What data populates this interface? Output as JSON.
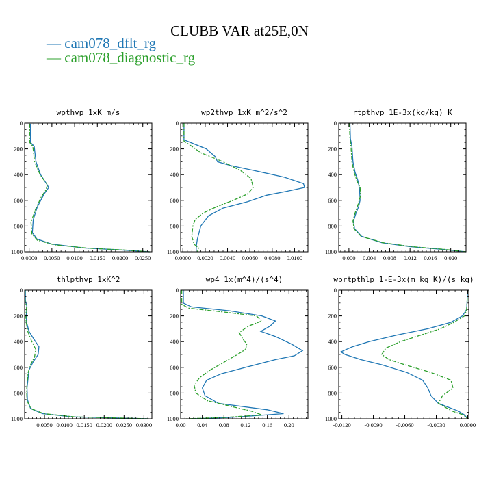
{
  "chart_data": {
    "title": "CLUBB VAR at25E,0N",
    "legend": [
      {
        "label": "cam078_dflt_rg",
        "color": "#1f77b4",
        "dash": "solid"
      },
      {
        "label": "cam078_diagnostic_rg",
        "color": "#2ca02c",
        "dash": "dashdot"
      }
    ],
    "panels": [
      {
        "type": "line",
        "title": "wpthvp   1xK m/s",
        "xlim": [
          -0.001,
          0.027
        ],
        "ylim": [
          1000,
          0
        ],
        "xticks": [
          0.0,
          0.005,
          0.01,
          0.015,
          0.02,
          0.025
        ],
        "xtick_labels": [
          "0.0000",
          "0.0050",
          "0.0100",
          "0.0150",
          "0.0200",
          "0.0250"
        ],
        "yticks": [
          0,
          200,
          400,
          600,
          800,
          1000
        ],
        "ytick_labels": [
          "0",
          "200",
          "400",
          "600",
          "800",
          "1000"
        ],
        "series": [
          {
            "y": [
              5,
              150,
              180,
              300,
              400,
              470,
              500,
              550,
              650,
              750,
              850,
              900,
              940,
              970,
              985,
              1000
            ],
            "x": [
              0.0003,
              0.0003,
              0.0011,
              0.0015,
              0.0025,
              0.0038,
              0.0043,
              0.0033,
              0.0018,
              0.0009,
              0.0007,
              0.0017,
              0.005,
              0.012,
              0.02,
              0.0265
            ]
          },
          {
            "y": [
              5,
              150,
              180,
              300,
              400,
              480,
              520,
              570,
              670,
              770,
              860,
              910,
              945,
              972,
              986,
              1000
            ],
            "x": [
              0.0001,
              0.0001,
              0.0008,
              0.0012,
              0.0024,
              0.004,
              0.0037,
              0.0027,
              0.0014,
              0.0004,
              0.0006,
              0.0018,
              0.0055,
              0.013,
              0.021,
              0.0265
            ]
          }
        ]
      },
      {
        "type": "line",
        "title": "wp2thvp   1xK m^2/s^2",
        "xlim": [
          -0.0002,
          0.0112
        ],
        "ylim": [
          1000,
          0
        ],
        "xticks": [
          0.0,
          0.002,
          0.004,
          0.006,
          0.008,
          0.01
        ],
        "xtick_labels": [
          "0.0000",
          "0.0020",
          "0.0040",
          "0.0060",
          "0.0080",
          "0.0100"
        ],
        "yticks": [
          0,
          200,
          400,
          600,
          800,
          1000
        ],
        "ytick_labels": [
          "0",
          "200",
          "400",
          "600",
          "800",
          "1000"
        ],
        "series": [
          {
            "y": [
              0,
              130,
              200,
              260,
              300,
              330,
              370,
              420,
              470,
              500,
              530,
              560,
              610,
              660,
              720,
              800,
              900,
              960,
              1000
            ],
            "x": [
              0.0001,
              0.0001,
              0.0021,
              0.0029,
              0.0031,
              0.0043,
              0.0065,
              0.0091,
              0.0108,
              0.0109,
              0.0093,
              0.0075,
              0.0058,
              0.0036,
              0.0023,
              0.0016,
              0.0013,
              0.0012,
              0.0012
            ]
          },
          {
            "y": [
              0,
              140,
              180,
              230,
              300,
              370,
              430,
              500,
              550,
              600,
              650,
              700,
              750,
              800,
              880,
              940,
              970,
              1000
            ],
            "x": [
              0.0001,
              0.0001,
              0.0008,
              0.0016,
              0.0036,
              0.0052,
              0.0061,
              0.0063,
              0.0058,
              0.0045,
              0.003,
              0.0018,
              0.0011,
              0.0009,
              0.0008,
              0.001,
              0.0014,
              0.0013
            ]
          }
        ]
      },
      {
        "type": "line",
        "title": "rtpthvp   1E-3x(kg/kg) K",
        "xlim": [
          -0.002,
          0.023
        ],
        "ylim": [
          1000,
          0
        ],
        "xticks": [
          0.0,
          0.004,
          0.008,
          0.012,
          0.016,
          0.02
        ],
        "xtick_labels": [
          "0.000",
          "0.004",
          "0.008",
          "0.012",
          "0.016",
          "0.020"
        ],
        "yticks": [
          0,
          200,
          400,
          600,
          800,
          1000
        ],
        "ytick_labels": [
          "0",
          "200",
          "400",
          "600",
          "800",
          "1000"
        ],
        "series": [
          {
            "y": [
              0,
              120,
              180,
              300,
              380,
              450,
              520,
              600,
              650,
              700,
              760,
              820,
              880,
              930,
              960,
              980,
              1000
            ],
            "x": [
              0.0002,
              0.0003,
              0.0006,
              0.0008,
              0.0012,
              0.0018,
              0.0021,
              0.0022,
              0.0019,
              0.0014,
              0.0009,
              0.0011,
              0.0025,
              0.0065,
              0.012,
              0.018,
              0.023
            ]
          },
          {
            "y": [
              0,
              120,
              180,
              300,
              380,
              450,
              500,
              560,
              620,
              700,
              760,
              820,
              880,
              930,
              960,
              980,
              1000
            ],
            "x": [
              0.0001,
              0.0002,
              0.0004,
              0.0006,
              0.001,
              0.0016,
              0.0022,
              0.0023,
              0.0019,
              0.0012,
              0.0008,
              0.001,
              0.0024,
              0.0068,
              0.0125,
              0.0185,
              0.023
            ]
          }
        ]
      },
      {
        "type": "line",
        "title": "thlpthvp   1xK^2",
        "xlim": [
          0.0,
          0.032
        ],
        "ylim": [
          1000,
          0
        ],
        "xticks": [
          0.005,
          0.01,
          0.015,
          0.02,
          0.025,
          0.03
        ],
        "xtick_labels": [
          "0.0050",
          "0.0100",
          "0.0150",
          "0.0200",
          "0.0250",
          "0.0300"
        ],
        "yticks": [
          0,
          200,
          400,
          600,
          800,
          1000
        ],
        "ytick_labels": [
          "0",
          "200",
          "400",
          "600",
          "800",
          "1000"
        ],
        "series": [
          {
            "y": [
              0,
              80,
              130,
              200,
              250,
              320,
              380,
              440,
              500,
              560,
              620,
              680,
              760,
              850,
              920,
              960,
              985,
              1000
            ],
            "x": [
              0.0002,
              0.0002,
              0.0006,
              0.0004,
              0.0005,
              0.0011,
              0.0023,
              0.0036,
              0.0034,
              0.0021,
              0.0011,
              0.0009,
              0.0006,
              0.0007,
              0.0015,
              0.0045,
              0.012,
              0.0312
            ]
          },
          {
            "y": [
              0,
              80,
              130,
              200,
              250,
              320,
              400,
              460,
              520,
              580,
              640,
              700,
              780,
              860,
              920,
              960,
              985,
              1000
            ],
            "x": [
              0.0001,
              0.0001,
              0.0005,
              0.0003,
              0.0004,
              0.0008,
              0.0018,
              0.0028,
              0.0025,
              0.0015,
              0.0009,
              0.0007,
              0.0005,
              0.0006,
              0.0016,
              0.0048,
              0.0125,
              0.0312
            ]
          }
        ]
      },
      {
        "type": "line",
        "title": "wp4   1x(m^4)/(s^4)",
        "xlim": [
          0.0,
          0.235
        ],
        "ylim": [
          1000,
          0
        ],
        "xticks": [
          0.0,
          0.04,
          0.08,
          0.12,
          0.16,
          0.2
        ],
        "xtick_labels": [
          "0.00",
          "0.04",
          "0.08",
          "0.12",
          "0.16",
          "0.20"
        ],
        "yticks": [
          0,
          200,
          400,
          600,
          800,
          1000
        ],
        "ytick_labels": [
          "0",
          "200",
          "400",
          "600",
          "800",
          "1000"
        ],
        "series": [
          {
            "y": [
              0,
              100,
              130,
              160,
              200,
              240,
              280,
              320,
              360,
              420,
              470,
              510,
              540,
              600,
              650,
              700,
              760,
              820,
              880,
              930,
              960,
              990,
              1000
            ],
            "x": [
              0.005,
              0.005,
              0.02,
              0.09,
              0.15,
              0.175,
              0.165,
              0.148,
              0.175,
              0.205,
              0.225,
              0.21,
              0.175,
              0.12,
              0.075,
              0.048,
              0.04,
              0.045,
              0.07,
              0.16,
              0.19,
              0.09,
              0.02
            ]
          },
          {
            "y": [
              0,
              110,
              140,
              170,
              200,
              240,
              280,
              330,
              380,
              420,
              460,
              500,
              560,
              620,
              680,
              740,
              800,
              860,
              900,
              940,
              970,
              990,
              1000
            ],
            "x": [
              0.002,
              0.002,
              0.015,
              0.08,
              0.14,
              0.15,
              0.125,
              0.108,
              0.115,
              0.122,
              0.12,
              0.105,
              0.08,
              0.055,
              0.035,
              0.025,
              0.028,
              0.05,
              0.09,
              0.13,
              0.15,
              0.08,
              0.01
            ]
          }
        ]
      },
      {
        "type": "line",
        "title": "wprtpthlp   1-E-3x(m kg K)/(s kg)",
        "xlim": [
          -0.0123,
          0.0001
        ],
        "ylim": [
          1000,
          0
        ],
        "xticks": [
          -0.012,
          -0.009,
          -0.006,
          -0.003,
          0.0
        ],
        "xtick_labels": [
          "-0.0120",
          "-0.0090",
          "-0.0060",
          "-0.0030",
          "0.0000"
        ],
        "yticks": [
          0,
          200,
          400,
          600,
          800,
          1000
        ],
        "ytick_labels": [
          "0",
          "200",
          "400",
          "600",
          "800",
          "1000"
        ],
        "series": [
          {
            "y": [
              0,
              150,
              200,
              250,
              300,
              350,
              400,
              440,
              480,
              500,
              540,
              580,
              640,
              700,
              760,
              820,
              880,
              940,
              970,
              1000
            ],
            "x": [
              0.0,
              -0.0001,
              -0.0005,
              -0.0016,
              -0.0038,
              -0.0068,
              -0.0094,
              -0.011,
              -0.0121,
              -0.0117,
              -0.0102,
              -0.0082,
              -0.0058,
              -0.0043,
              -0.0038,
              -0.0035,
              -0.0028,
              -0.0009,
              -0.0003,
              0.0
            ]
          },
          {
            "y": [
              0,
              150,
              200,
              250,
              300,
              350,
              400,
              450,
              500,
              540,
              580,
              640,
              700,
              760,
              820,
              880,
              940,
              970,
              1000
            ],
            "x": [
              0.0,
              -0.0001,
              -0.0003,
              -0.0013,
              -0.0026,
              -0.0045,
              -0.0064,
              -0.0078,
              -0.0082,
              -0.0075,
              -0.006,
              -0.0035,
              -0.0016,
              -0.0014,
              -0.0024,
              -0.0028,
              -0.0015,
              -0.0004,
              0.0
            ]
          }
        ]
      }
    ]
  }
}
